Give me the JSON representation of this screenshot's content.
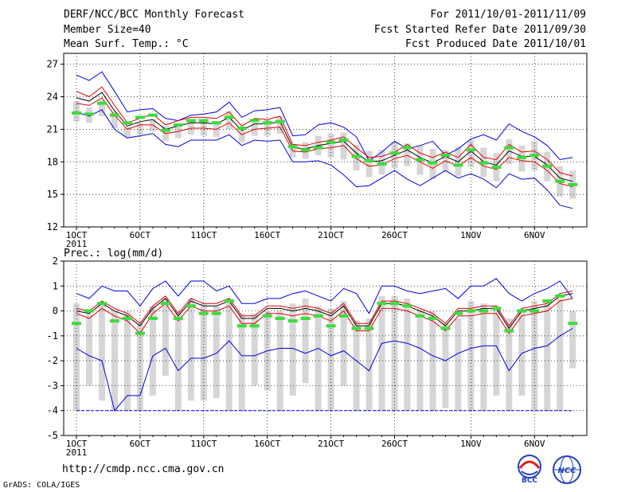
{
  "header": {
    "title": "DERF/NCC/BCC Monthly Forecast",
    "member_size": "Member Size=40",
    "variable": "Mean Surf. Temp.: °C",
    "for_period": "For 2011/10/01-2011/11/09",
    "fcst_started": "Fcst Started Refer Date 2011/09/30",
    "fcst_produced": "Fcst Produced Date 2011/10/01"
  },
  "footer": {
    "url": "http://cmdp.ncc.cma.gov.cn",
    "grads": "GrADS: COLA/IGES",
    "logo_bcc": "BCC",
    "logo_ncc": "NCC"
  },
  "colors": {
    "ensemble_range": "#0000e6",
    "spread": "#e60000",
    "mean": "#000000",
    "member_box": "#d6d6d6",
    "median_marker": "#3cdc3c",
    "grid": "#000000"
  },
  "chart_data": [
    {
      "type": "line",
      "title": "Mean Surf. Temp.: °C",
      "ylabel": "°C",
      "ylim": [
        12,
        28
      ],
      "yticks": [
        12,
        15,
        18,
        21,
        24,
        27
      ],
      "xticks": [
        "1OCT",
        "6OCT",
        "11OCT",
        "16OCT",
        "21OCT",
        "26OCT",
        "1NOV",
        "6NOV"
      ],
      "xtick_index": [
        0,
        5,
        10,
        15,
        20,
        25,
        31,
        36
      ],
      "x_year_label": "2011",
      "days": 40,
      "series": [
        {
          "name": "ensemble max",
          "values": [
            26.0,
            25.5,
            26.3,
            24.5,
            22.6,
            22.8,
            22.9,
            22.0,
            21.8,
            22.3,
            22.4,
            22.6,
            23.5,
            22.1,
            22.7,
            22.8,
            23.0,
            20.4,
            20.5,
            21.4,
            21.6,
            21.2,
            20.3,
            18.1,
            18.9,
            19.9,
            19.2,
            19.5,
            19.9,
            18.6,
            19.2,
            20.1,
            20.5,
            20.0,
            21.5,
            20.8,
            20.3,
            19.5,
            18.2,
            18.4
          ]
        },
        {
          "name": "spread upper",
          "values": [
            24.5,
            24.0,
            24.9,
            23.2,
            21.6,
            22.0,
            22.4,
            21.4,
            21.8,
            22.1,
            22.1,
            22.0,
            22.6,
            21.3,
            22.0,
            21.9,
            22.2,
            19.6,
            19.5,
            19.8,
            20.0,
            20.3,
            19.3,
            18.4,
            18.5,
            18.9,
            19.6,
            18.8,
            18.4,
            18.9,
            18.4,
            19.6,
            18.4,
            18.2,
            19.6,
            18.9,
            19.0,
            18.2,
            17.0,
            16.7
          ]
        },
        {
          "name": "ensemble mean",
          "values": [
            23.9,
            23.6,
            24.4,
            22.7,
            21.3,
            21.7,
            21.9,
            21.0,
            21.3,
            21.6,
            21.6,
            21.5,
            22.1,
            20.9,
            21.5,
            21.5,
            21.7,
            19.3,
            19.2,
            19.5,
            19.7,
            19.9,
            18.8,
            18.0,
            18.1,
            18.6,
            19.1,
            18.4,
            17.9,
            18.5,
            18.0,
            19.0,
            18.0,
            17.7,
            19.0,
            18.5,
            18.5,
            17.7,
            16.5,
            16.2
          ]
        },
        {
          "name": "spread lower",
          "values": [
            23.4,
            23.2,
            23.9,
            22.3,
            21.0,
            21.4,
            21.4,
            20.6,
            20.8,
            21.1,
            21.1,
            21.0,
            21.6,
            20.5,
            21.0,
            21.1,
            21.2,
            19.0,
            18.9,
            19.2,
            19.3,
            19.5,
            18.3,
            17.6,
            17.7,
            18.3,
            18.6,
            18.0,
            17.4,
            18.1,
            17.6,
            18.4,
            17.6,
            17.3,
            18.4,
            18.1,
            18.0,
            17.2,
            16.0,
            15.7
          ]
        },
        {
          "name": "ensemble min",
          "values": [
            22.6,
            22.2,
            22.8,
            21.0,
            20.2,
            20.4,
            20.6,
            19.6,
            19.4,
            20.0,
            20.0,
            20.0,
            20.5,
            19.5,
            20.0,
            19.9,
            20.0,
            18.0,
            18.0,
            18.1,
            17.7,
            16.8,
            15.7,
            15.8,
            16.5,
            17.2,
            16.4,
            15.8,
            16.5,
            17.2,
            16.5,
            16.9,
            16.4,
            15.6,
            16.9,
            16.4,
            16.5,
            15.4,
            14.0,
            13.7
          ]
        }
      ],
      "box_low": [
        21.7,
        21.6,
        22.2,
        21.1,
        20.3,
        20.5,
        20.8,
        19.9,
        20.2,
        20.5,
        20.4,
        20.3,
        21.0,
        19.8,
        20.4,
        20.4,
        20.6,
        18.4,
        18.3,
        18.6,
        18.4,
        18.2,
        17.2,
        16.6,
        16.8,
        17.4,
        17.6,
        16.8,
        16.4,
        17.1,
        16.7,
        17.5,
        16.6,
        16.2,
        17.8,
        17.1,
        17.2,
        16.2,
        14.8,
        14.6
      ],
      "box_high": [
        23.6,
        23.0,
        23.7,
        22.6,
        21.2,
        21.6,
        21.9,
        21.3,
        21.3,
        21.8,
        21.6,
        21.7,
        22.7,
        21.2,
        21.6,
        21.9,
        22.2,
        19.6,
        19.8,
        20.4,
        20.6,
        20.7,
        19.6,
        19.0,
        19.1,
        19.8,
        19.7,
        19.5,
        19.2,
        19.1,
        19.4,
        20.0,
        19.3,
        18.8,
        20.1,
        19.5,
        19.9,
        18.9,
        17.6,
        17.2
      ],
      "median": [
        22.5,
        22.4,
        23.4,
        22.3,
        21.6,
        22.1,
        22.3,
        20.9,
        21.4,
        21.8,
        21.8,
        21.6,
        22.1,
        21.1,
        21.8,
        21.6,
        21.7,
        19.4,
        19.1,
        19.3,
        19.8,
        20.0,
        18.5,
        18.1,
        17.8,
        18.8,
        19.3,
        18.2,
        17.9,
        18.6,
        17.7,
        19.1,
        17.9,
        17.5,
        19.3,
        18.4,
        18.6,
        17.6,
        16.2,
        15.9
      ]
    },
    {
      "type": "line",
      "title": "Prec.: log(mm/d)",
      "ylabel": "log(mm/d)",
      "ylim": [
        -5,
        2
      ],
      "yticks": [
        -5,
        -4,
        -3,
        -2,
        -1,
        0,
        1,
        2
      ],
      "xticks": [
        "1OCT",
        "6OCT",
        "11OCT",
        "16OCT",
        "21OCT",
        "26OCT",
        "1NOV",
        "6NOV"
      ],
      "xtick_index": [
        0,
        5,
        10,
        15,
        20,
        25,
        31,
        36
      ],
      "x_year_label": "2011",
      "days": 40,
      "series": [
        {
          "name": "ensemble max",
          "values": [
            0.7,
            0.5,
            1.0,
            0.8,
            0.8,
            0.2,
            0.9,
            1.2,
            0.6,
            1.2,
            1.2,
            0.8,
            1.0,
            0.3,
            0.3,
            0.5,
            0.5,
            0.7,
            0.8,
            0.6,
            0.4,
            0.9,
            0.7,
            -0.1,
            1.0,
            1.0,
            0.8,
            0.7,
            0.8,
            0.9,
            0.5,
            1.0,
            1.0,
            1.3,
            0.7,
            0.4,
            0.7,
            0.9,
            1.2,
            0.5
          ]
        },
        {
          "name": "ensemble mean",
          "values": [
            0.0,
            -0.1,
            0.3,
            0.0,
            -0.2,
            -0.6,
            0.1,
            0.5,
            -0.2,
            0.4,
            0.2,
            0.2,
            0.4,
            -0.3,
            -0.3,
            0.1,
            0.1,
            0.0,
            0.1,
            0.0,
            -0.2,
            0.2,
            -0.6,
            -0.6,
            0.3,
            0.3,
            0.2,
            0.0,
            -0.2,
            -0.6,
            0.0,
            0.0,
            0.1,
            0.1,
            -0.7,
            0.0,
            0.1,
            0.2,
            0.6,
            0.7
          ]
        },
        {
          "name": "spread upper",
          "values": [
            0.1,
            0.0,
            0.4,
            0.1,
            -0.1,
            -0.5,
            0.2,
            0.6,
            -0.1,
            0.5,
            0.3,
            0.3,
            0.5,
            -0.2,
            -0.2,
            0.2,
            0.2,
            0.1,
            0.2,
            0.1,
            -0.1,
            0.3,
            -0.5,
            -0.5,
            0.4,
            0.4,
            0.3,
            0.1,
            -0.1,
            -0.5,
            0.1,
            0.1,
            0.2,
            0.2,
            -0.6,
            0.1,
            0.2,
            0.3,
            0.7,
            0.8
          ]
        },
        {
          "name": "spread lower",
          "values": [
            -0.1,
            -0.3,
            0.1,
            -0.2,
            -0.4,
            -0.9,
            -0.1,
            0.3,
            -0.4,
            0.2,
            0.0,
            0.0,
            0.2,
            -0.5,
            -0.5,
            -0.1,
            -0.1,
            -0.2,
            -0.1,
            -0.2,
            -0.4,
            0.0,
            -0.8,
            -0.8,
            0.1,
            0.1,
            0.0,
            -0.2,
            -0.4,
            -0.8,
            -0.2,
            -0.2,
            -0.1,
            -0.1,
            -0.9,
            -0.2,
            -0.1,
            0.0,
            0.4,
            0.5
          ]
        },
        {
          "name": "ensemble min",
          "values": [
            -1.5,
            -1.8,
            -2.0,
            -4.0,
            -3.4,
            -3.4,
            -1.8,
            -1.5,
            -2.4,
            -1.9,
            -1.9,
            -1.7,
            -1.2,
            -1.8,
            -1.8,
            -1.6,
            -1.5,
            -1.5,
            -1.7,
            -1.5,
            -1.8,
            -1.6,
            -2.0,
            -2.4,
            -1.3,
            -1.2,
            -1.3,
            -1.5,
            -1.8,
            -2.0,
            -1.7,
            -1.5,
            -1.4,
            -1.4,
            -2.4,
            -1.7,
            -1.5,
            -1.4,
            -1.0,
            -0.7
          ]
        }
      ],
      "box_low": [
        -4.0,
        -3.0,
        -3.6,
        -4.0,
        -4.0,
        -4.0,
        -3.4,
        -2.6,
        -4.0,
        -3.6,
        -3.6,
        -3.5,
        -4.0,
        -4.0,
        -3.0,
        -3.2,
        -4.0,
        -3.4,
        -2.9,
        -4.0,
        -4.0,
        -3.0,
        -4.0,
        -4.0,
        -4.0,
        -4.0,
        -4.0,
        -4.0,
        -4.0,
        -3.9,
        -4.0,
        -4.0,
        -4.0,
        -3.4,
        -4.0,
        -3.4,
        -4.0,
        -4.0,
        -4.0,
        -2.3
      ],
      "box_high": [
        0.3,
        -0.1,
        0.3,
        0.0,
        0.0,
        -0.5,
        0.2,
        0.5,
        0.0,
        0.5,
        0.3,
        0.2,
        0.5,
        -0.1,
        -0.1,
        0.0,
        0.0,
        0.3,
        0.5,
        0.2,
        0.1,
        0.4,
        -0.4,
        -0.3,
        0.6,
        0.6,
        0.5,
        0.0,
        0.0,
        -0.5,
        -0.3,
        0.4,
        0.3,
        0.2,
        -0.3,
        0.1,
        0.4,
        0.4,
        0.5,
        0.0
      ],
      "median": [
        -0.5,
        0.0,
        0.3,
        -0.4,
        -0.3,
        -0.9,
        -0.3,
        0.3,
        -0.3,
        0.2,
        -0.1,
        -0.1,
        0.4,
        -0.6,
        -0.6,
        -0.2,
        -0.3,
        -0.4,
        -0.3,
        -0.2,
        -0.6,
        -0.2,
        -0.7,
        -0.7,
        0.3,
        0.3,
        0.2,
        -0.2,
        -0.3,
        -0.7,
        -0.1,
        0.0,
        0.0,
        0.1,
        -0.8,
        0.0,
        0.0,
        0.4,
        0.6,
        -0.5
      ]
    }
  ]
}
